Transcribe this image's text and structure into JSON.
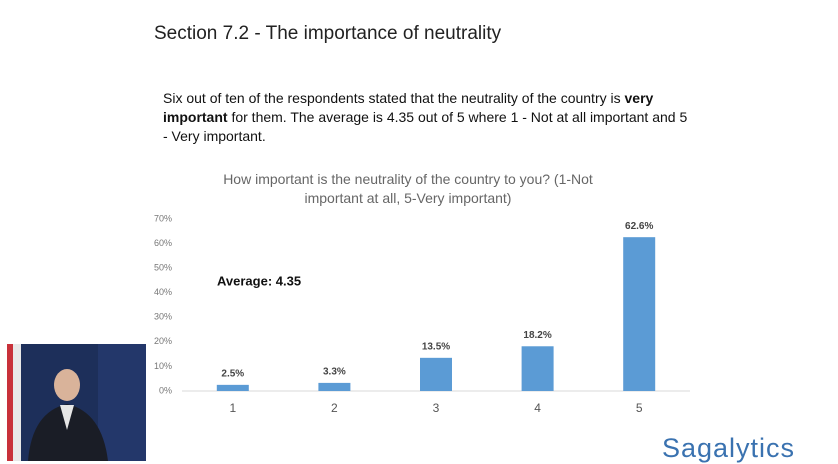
{
  "heading": "Section 7.2 - The importance of neutrality",
  "paragraph_start": "Six out of ten of the respondents stated that the neutrality of the country is ",
  "paragraph_bold": "very important",
  "paragraph_end": " for them. The average is 4.35 out of 5 where 1 - Not at all important and 5 - Very important.",
  "logo": "Sagalytics",
  "chart_data": {
    "type": "bar",
    "title": "How important is the neutrality of the country to you? (1-Not important at all, 5-Very important)",
    "annotation": "Average: 4.35",
    "categories": [
      "1",
      "2",
      "3",
      "4",
      "5"
    ],
    "values": [
      2.5,
      3.3,
      13.5,
      18.2,
      62.6
    ],
    "value_labels": [
      "2.5%",
      "3.3%",
      "13.5%",
      "18.2%",
      "62.6%"
    ],
    "color": "#5b9bd5",
    "ylim": [
      0,
      70
    ],
    "yticks": [
      {
        "value": 0,
        "label": "0%"
      },
      {
        "value": 10,
        "label": "10%"
      },
      {
        "value": 20,
        "label": "20%"
      },
      {
        "value": 30,
        "label": "30%"
      },
      {
        "value": 40,
        "label": "40%"
      },
      {
        "value": 50,
        "label": "50%"
      },
      {
        "value": 60,
        "label": "60%"
      },
      {
        "value": 70,
        "label": "70%"
      }
    ],
    "grid": false
  }
}
